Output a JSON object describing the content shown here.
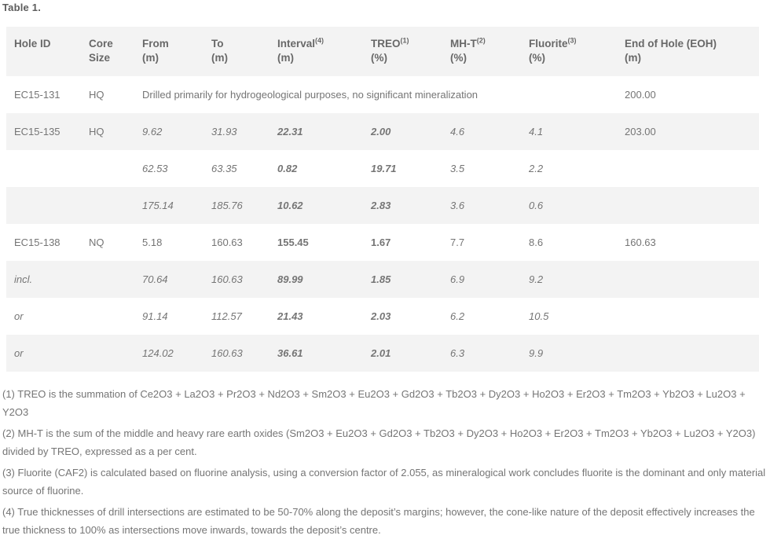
{
  "title": "Table 1.",
  "colors": {
    "stripe": "#f3f3f3",
    "header_bg": "#f3f3f3",
    "body_text": "#757575",
    "bold_text": "#575757",
    "header_text": "#686868"
  },
  "table": {
    "columns": [
      {
        "key": "hole_id",
        "line1": "Hole ID",
        "sup": "",
        "line2": ""
      },
      {
        "key": "core_size",
        "line1": "Core",
        "sup": "",
        "line2": "Size"
      },
      {
        "key": "from",
        "line1": "From",
        "sup": "",
        "line2": "(m)"
      },
      {
        "key": "to",
        "line1": "To",
        "sup": "",
        "line2": "(m)"
      },
      {
        "key": "interval",
        "line1": "Interval",
        "sup": "(4)",
        "line2": "(m)"
      },
      {
        "key": "treo",
        "line1": "TREO",
        "sup": "(1)",
        "line2": "(%)"
      },
      {
        "key": "mht",
        "line1": "MH-T",
        "sup": "(2)",
        "line2": "(%)"
      },
      {
        "key": "fluorite",
        "line1": "Fluorite",
        "sup": "(3)",
        "line2": "(%)"
      },
      {
        "key": "eoh",
        "line1": "End of Hole (EOH)",
        "sup": "",
        "line2": "(m)"
      }
    ],
    "rows": [
      {
        "hole_id": "EC15-131",
        "core_size": "HQ",
        "note": "Drilled primarily for hydrogeological purposes, no significant mineralization",
        "eoh": "200.00",
        "italic": false,
        "label_italic": false
      },
      {
        "hole_id": "EC15-135",
        "core_size": "HQ",
        "from": "9.62",
        "to": "31.93",
        "interval": "22.31",
        "treo": "2.00",
        "mht": "4.6",
        "fluorite": "4.1",
        "eoh": "203.00",
        "italic": true,
        "label_italic": false
      },
      {
        "hole_id": "",
        "core_size": "",
        "from": "62.53",
        "to": "63.35",
        "interval": "0.82",
        "treo": "19.71",
        "mht": "3.5",
        "fluorite": "2.2",
        "eoh": "",
        "italic": true,
        "label_italic": false
      },
      {
        "hole_id": "",
        "core_size": "",
        "from": "175.14",
        "to": "185.76",
        "interval": "10.62",
        "treo": "2.83",
        "mht": "3.6",
        "fluorite": "0.6",
        "eoh": "",
        "italic": true,
        "label_italic": false
      },
      {
        "hole_id": "EC15-138",
        "core_size": "NQ",
        "from": "5.18",
        "to": "160.63",
        "interval": "155.45",
        "treo": "1.67",
        "mht": "7.7",
        "fluorite": "8.6",
        "eoh": "160.63",
        "italic": false,
        "label_italic": false
      },
      {
        "hole_id": "incl.",
        "core_size": "",
        "from": "70.64",
        "to": "160.63",
        "interval": "89.99",
        "treo": "1.85",
        "mht": "6.9",
        "fluorite": "9.2",
        "eoh": "",
        "italic": true,
        "label_italic": true
      },
      {
        "hole_id": "or",
        "core_size": "",
        "from": "91.14",
        "to": "112.57",
        "interval": "21.43",
        "treo": "2.03",
        "mht": "6.2",
        "fluorite": "10.5",
        "eoh": "",
        "italic": true,
        "label_italic": true
      },
      {
        "hole_id": "or",
        "core_size": "",
        "from": "124.02",
        "to": "160.63",
        "interval": "36.61",
        "treo": "2.01",
        "mht": "6.3",
        "fluorite": "9.9",
        "eoh": "",
        "italic": true,
        "label_italic": true
      }
    ]
  },
  "footnotes": [
    "(1) TREO is the summation of Ce2O3 + La2O3 + Pr2O3 + Nd2O3 + Sm2O3 + Eu2O3 + Gd2O3 + Tb2O3 + Dy2O3 + Ho2O3 + Er2O3 + Tm2O3 + Yb2O3 + Lu2O3 + Y2O3",
    "(2) MH-T is the sum of the middle and heavy rare earth oxides (Sm2O3 + Eu2O3 + Gd2O3 + Tb2O3 + Dy2O3 + Ho2O3 + Er2O3 + Tm2O3 + Yb2O3 + Lu2O3 + Y2O3) divided by TREO, expressed as a per cent.",
    "(3) Fluorite (CAF2) is calculated based on fluorine analysis, using a conversion factor of 2.055, as mineralogical work concludes fluorite is the dominant and only material source of fluorine.",
    "(4) True thicknesses of drill intersections are estimated to be 50-70% along the deposit’s margins; however, the cone-like nature of the deposit effectively increases the true thickness to 100% as intersections move inwards, towards the deposit’s centre."
  ]
}
